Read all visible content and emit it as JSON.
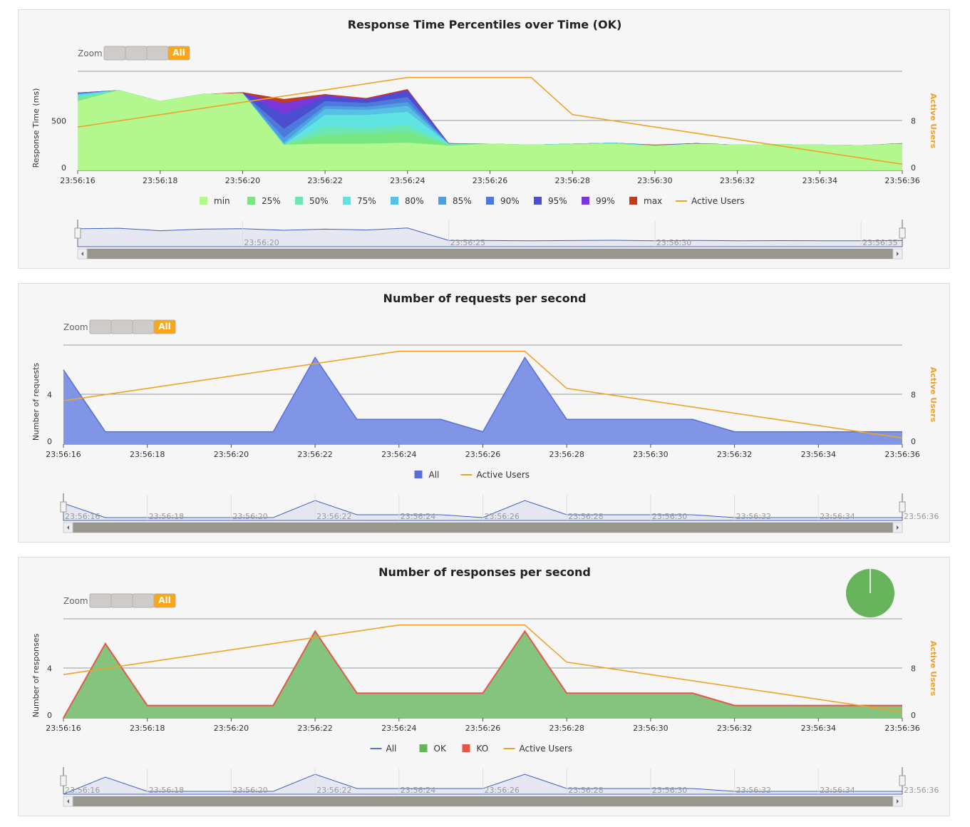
{
  "zoom": {
    "label": "Zoom",
    "buttons": [
      "",
      "",
      "",
      "All"
    ],
    "active": "All"
  },
  "colors": {
    "active_users": "#f0a228",
    "requests_fill": "#8095e6",
    "requests_line": "#5a6fd6",
    "ok_fill": "#85c47e",
    "ko_line": "#e4584a",
    "grid": "#999999",
    "pie": "#67b35c"
  },
  "x_tick_labels": [
    "23:56:16",
    "23:56:18",
    "23:56:20",
    "23:56:22",
    "23:56:24",
    "23:56:26",
    "23:56:28",
    "23:56:30",
    "23:56:32",
    "23:56:34",
    "23:56:36"
  ],
  "chart_data": [
    {
      "type": "area",
      "title": "Response Time Percentiles over Time (OK)",
      "ylabel": "Response Time (ms)",
      "y2label": "Active Users",
      "ylim": [
        0,
        1000
      ],
      "y2lim": [
        0,
        16
      ],
      "yticks": [
        "0",
        "500"
      ],
      "y2ticks": [
        "0",
        "8"
      ],
      "x": [
        "23:56:16",
        "23:56:17",
        "23:56:18",
        "23:56:19",
        "23:56:20",
        "23:56:21",
        "23:56:22",
        "23:56:23",
        "23:56:24",
        "23:56:25",
        "23:56:26",
        "23:56:27",
        "23:56:28",
        "23:56:29",
        "23:56:30",
        "23:56:31",
        "23:56:32",
        "23:56:33",
        "23:56:34",
        "23:56:35",
        "23:56:36"
      ],
      "series": [
        {
          "name": "min",
          "color": "#b3f78f",
          "values": [
            700,
            810,
            700,
            770,
            780,
            260,
            270,
            270,
            280,
            250,
            270,
            260,
            265,
            270,
            250,
            270,
            260,
            265,
            260,
            255,
            270
          ]
        },
        {
          "name": "25%",
          "color": "#77e77f",
          "values": [
            720,
            810,
            700,
            770,
            780,
            260,
            360,
            370,
            390,
            260,
            270,
            260,
            265,
            270,
            250,
            270,
            260,
            265,
            260,
            255,
            270
          ]
        },
        {
          "name": "50%",
          "color": "#6ee6b1",
          "values": [
            740,
            810,
            700,
            770,
            780,
            260,
            440,
            430,
            460,
            260,
            270,
            260,
            265,
            270,
            250,
            270,
            260,
            265,
            260,
            255,
            270
          ]
        },
        {
          "name": "75%",
          "color": "#5fe4e1",
          "values": [
            760,
            810,
            700,
            770,
            780,
            260,
            560,
            560,
            590,
            270,
            270,
            260,
            270,
            280,
            250,
            270,
            260,
            265,
            260,
            255,
            270
          ]
        },
        {
          "name": "80%",
          "color": "#55c2e4",
          "values": [
            770,
            810,
            700,
            770,
            780,
            280,
            620,
            610,
            650,
            270,
            270,
            260,
            270,
            280,
            250,
            270,
            260,
            265,
            260,
            255,
            270
          ]
        },
        {
          "name": "85%",
          "color": "#4f9ee0",
          "values": [
            775,
            810,
            700,
            770,
            780,
            330,
            650,
            640,
            690,
            270,
            270,
            260,
            270,
            280,
            255,
            270,
            260,
            265,
            260,
            255,
            270
          ]
        },
        {
          "name": "90%",
          "color": "#4e79dc",
          "values": [
            780,
            810,
            700,
            770,
            780,
            420,
            700,
            680,
            740,
            270,
            270,
            260,
            270,
            280,
            255,
            270,
            260,
            265,
            260,
            255,
            270
          ]
        },
        {
          "name": "95%",
          "color": "#4b4fcf",
          "values": [
            780,
            810,
            700,
            770,
            780,
            570,
            740,
            710,
            800,
            270,
            270,
            260,
            270,
            280,
            255,
            275,
            260,
            265,
            260,
            255,
            270
          ]
        },
        {
          "name": "99%",
          "color": "#7c37d8",
          "values": [
            785,
            810,
            700,
            770,
            780,
            680,
            760,
            720,
            810,
            275,
            270,
            260,
            270,
            280,
            255,
            275,
            260,
            265,
            260,
            255,
            270
          ]
        },
        {
          "name": "max",
          "color": "#c23b1c",
          "values": [
            785,
            810,
            700,
            770,
            790,
            720,
            770,
            730,
            820,
            275,
            270,
            260,
            270,
            280,
            260,
            275,
            260,
            265,
            260,
            255,
            275
          ]
        }
      ],
      "active_users": {
        "name": "Active Users",
        "x": [
          "23:56:16",
          "23:56:24",
          "23:56:27",
          "23:56:28",
          "23:56:36"
        ],
        "values": [
          7,
          15,
          15,
          9,
          1
        ]
      },
      "legend": [
        "min",
        "25%",
        "50%",
        "75%",
        "80%",
        "85%",
        "90%",
        "95%",
        "99%",
        "max",
        "Active Users"
      ],
      "navigator_labels": [
        "23:56:20",
        "23:56:25",
        "23:56:30",
        "23:56:35"
      ]
    },
    {
      "type": "area",
      "title": "Number of requests per second",
      "ylabel": "Number of requests",
      "y2label": "Active Users",
      "ylim": [
        0,
        8
      ],
      "y2lim": [
        0,
        16
      ],
      "yticks": [
        "0",
        "4"
      ],
      "y2ticks": [
        "0",
        "8"
      ],
      "x": [
        "23:56:16",
        "23:56:17",
        "23:56:18",
        "23:56:19",
        "23:56:20",
        "23:56:21",
        "23:56:22",
        "23:56:23",
        "23:56:24",
        "23:56:25",
        "23:56:26",
        "23:56:27",
        "23:56:28",
        "23:56:29",
        "23:56:30",
        "23:56:31",
        "23:56:32",
        "23:56:33",
        "23:56:34",
        "23:56:35",
        "23:56:36"
      ],
      "series": [
        {
          "name": "All",
          "values": [
            6,
            1,
            1,
            1,
            1,
            1,
            7,
            2,
            2,
            2,
            1,
            7,
            2,
            2,
            2,
            2,
            1,
            1,
            1,
            1,
            1
          ]
        }
      ],
      "active_users": {
        "name": "Active Users",
        "x": [
          "23:56:16",
          "23:56:24",
          "23:56:27",
          "23:56:28",
          "23:56:36"
        ],
        "values": [
          7,
          15,
          15,
          9,
          1
        ]
      },
      "legend": [
        "All",
        "Active Users"
      ],
      "navigator_labels": [
        "23:56:16",
        "23:56:18",
        "23:56:20",
        "23:56:22",
        "23:56:24",
        "23:56:26",
        "23:56:28",
        "23:56:30",
        "23:56:32",
        "23:56:34",
        "23:56:36"
      ]
    },
    {
      "type": "area",
      "title": "Number of responses per second",
      "ylabel": "Number of responses",
      "y2label": "Active Users",
      "ylim": [
        0,
        8
      ],
      "y2lim": [
        0,
        16
      ],
      "yticks": [
        "0",
        "4"
      ],
      "y2ticks": [
        "0",
        "8"
      ],
      "x": [
        "23:56:16",
        "23:56:17",
        "23:56:18",
        "23:56:19",
        "23:56:20",
        "23:56:21",
        "23:56:22",
        "23:56:23",
        "23:56:24",
        "23:56:25",
        "23:56:26",
        "23:56:27",
        "23:56:28",
        "23:56:29",
        "23:56:30",
        "23:56:31",
        "23:56:32",
        "23:56:33",
        "23:56:34",
        "23:56:35",
        "23:56:36"
      ],
      "series": [
        {
          "name": "All",
          "values": [
            0,
            6,
            1,
            1,
            1,
            1,
            7,
            2,
            2,
            2,
            2,
            7,
            2,
            2,
            2,
            2,
            1,
            1,
            1,
            1,
            1
          ]
        },
        {
          "name": "OK",
          "values": [
            0,
            6,
            1,
            1,
            1,
            1,
            7,
            2,
            2,
            2,
            2,
            7,
            2,
            2,
            2,
            2,
            1,
            1,
            1,
            1,
            1
          ]
        },
        {
          "name": "KO",
          "values": [
            0,
            0,
            0,
            0,
            0,
            0,
            0,
            0,
            0,
            0,
            0,
            0,
            0,
            0,
            0,
            0,
            0,
            0,
            0,
            0,
            0
          ]
        }
      ],
      "active_users": {
        "name": "Active Users",
        "x": [
          "23:56:16",
          "23:56:24",
          "23:56:27",
          "23:56:28",
          "23:56:36"
        ],
        "values": [
          7,
          15,
          15,
          9,
          1
        ]
      },
      "legend": [
        "All",
        "OK",
        "KO",
        "Active Users"
      ],
      "pie": {
        "OK": 100,
        "KO": 0
      },
      "navigator_labels": [
        "23:56:16",
        "23:56:18",
        "23:56:20",
        "23:56:22",
        "23:56:24",
        "23:56:26",
        "23:56:28",
        "23:56:30",
        "23:56:32",
        "23:56:34",
        "23:56:36"
      ]
    }
  ]
}
